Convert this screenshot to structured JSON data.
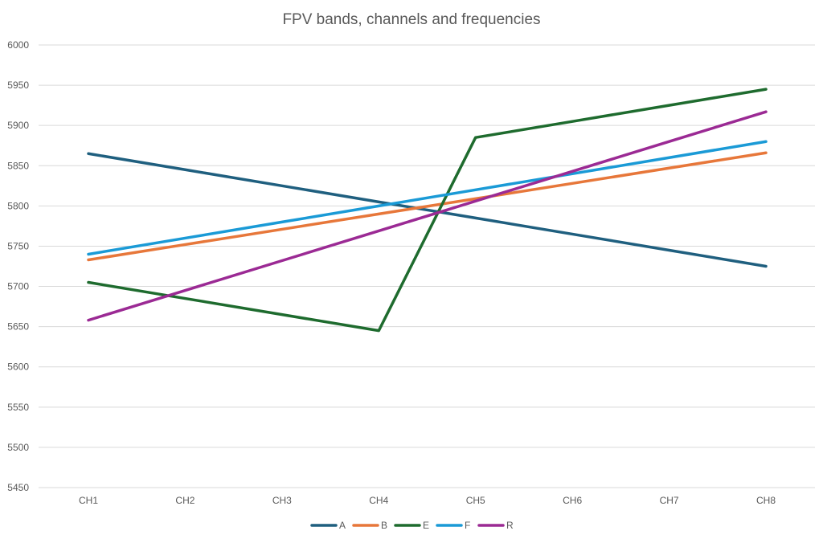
{
  "chart_data": {
    "type": "line",
    "title": "FPV bands, channels and frequencies",
    "xlabel": "",
    "ylabel": "",
    "categories": [
      "CH1",
      "CH2",
      "CH3",
      "CH4",
      "CH5",
      "CH6",
      "CH7",
      "CH8"
    ],
    "ylim": [
      5450,
      6000
    ],
    "yticks": [
      5450,
      5500,
      5550,
      5600,
      5650,
      5700,
      5750,
      5800,
      5850,
      5900,
      5950,
      6000
    ],
    "grid": "horizontal",
    "legend_position": "bottom",
    "series": [
      {
        "name": "A",
        "color": "#1f5f7f",
        "values": [
          5865,
          5845,
          5825,
          5805,
          5785,
          5765,
          5745,
          5725
        ]
      },
      {
        "name": "B",
        "color": "#e7773a",
        "values": [
          5733,
          5752,
          5771,
          5790,
          5809,
          5828,
          5847,
          5866
        ]
      },
      {
        "name": "E",
        "color": "#1e6b2e",
        "values": [
          5705,
          5685,
          5665,
          5645,
          5885,
          5905,
          5925,
          5945
        ]
      },
      {
        "name": "F",
        "color": "#1a9ad6",
        "values": [
          5740,
          5760,
          5780,
          5800,
          5820,
          5840,
          5860,
          5880
        ]
      },
      {
        "name": "R",
        "color": "#9b2a94",
        "values": [
          5658,
          5695,
          5732,
          5769,
          5806,
          5843,
          5880,
          5917
        ]
      }
    ]
  }
}
